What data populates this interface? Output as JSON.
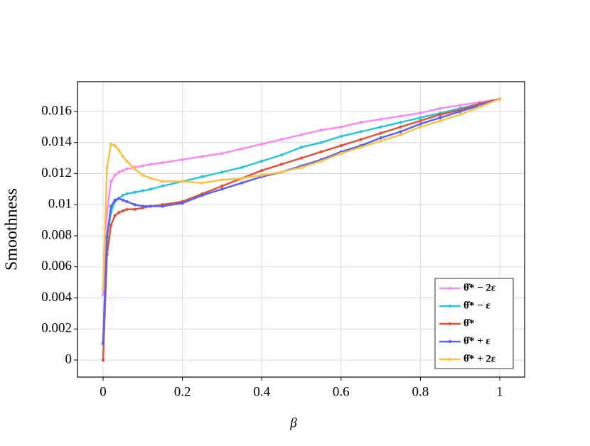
{
  "chart_data": {
    "type": "line",
    "xlabel": "β",
    "ylabel": "Smoothness",
    "x": [
      0,
      0.01,
      0.02,
      0.03,
      0.04,
      0.05,
      0.06,
      0.08,
      0.1,
      0.12,
      0.15,
      0.2,
      0.25,
      0.3,
      0.35,
      0.4,
      0.45,
      0.5,
      0.55,
      0.6,
      0.65,
      0.7,
      0.75,
      0.8,
      0.85,
      0.9,
      0.95,
      1
    ],
    "series": [
      {
        "name": "θ̂* − 2ε",
        "color": "#f78cf0",
        "values": [
          0.0042,
          0.0095,
          0.0115,
          0.0119,
          0.0121,
          0.0122,
          0.0123,
          0.0124,
          0.0125,
          0.0126,
          0.0127,
          0.0129,
          0.0131,
          0.0133,
          0.0136,
          0.0139,
          0.0142,
          0.0145,
          0.0148,
          0.015,
          0.0153,
          0.0155,
          0.0157,
          0.0159,
          0.0162,
          0.0164,
          0.0166,
          0.0168
        ]
      },
      {
        "name": "θ̂* − ε",
        "color": "#2ec4d8",
        "values": [
          0.001,
          0.008,
          0.0095,
          0.0102,
          0.0104,
          0.0106,
          0.0107,
          0.0108,
          0.0109,
          0.011,
          0.0112,
          0.0115,
          0.0118,
          0.0121,
          0.0124,
          0.0128,
          0.0132,
          0.0137,
          0.014,
          0.0144,
          0.0147,
          0.015,
          0.0153,
          0.0156,
          0.0159,
          0.0162,
          0.0165,
          0.0168
        ]
      },
      {
        "name": "θ̂*",
        "color": "#dd5539",
        "values": [
          0,
          0.0068,
          0.0087,
          0.0093,
          0.0095,
          0.0096,
          0.0097,
          0.0097,
          0.0098,
          0.0099,
          0.01,
          0.0102,
          0.0107,
          0.0112,
          0.0117,
          0.0122,
          0.0126,
          0.013,
          0.0134,
          0.0138,
          0.0142,
          0.0146,
          0.015,
          0.0154,
          0.0158,
          0.0161,
          0.0165,
          0.0168
        ]
      },
      {
        "name": "θ̂* + ε",
        "color": "#5b63e8",
        "values": [
          0.0011,
          0.0079,
          0.0099,
          0.0103,
          0.0104,
          0.0103,
          0.0102,
          0.01,
          0.0099,
          0.0099,
          0.0099,
          0.0101,
          0.0106,
          0.011,
          0.0114,
          0.0118,
          0.0121,
          0.0125,
          0.0129,
          0.0134,
          0.0138,
          0.0143,
          0.0147,
          0.0152,
          0.0156,
          0.016,
          0.0164,
          0.0168
        ]
      },
      {
        "name": "θ̂* + 2ε",
        "color": "#f8c24a",
        "values": [
          0.0046,
          0.0124,
          0.0139,
          0.0138,
          0.0135,
          0.0131,
          0.0128,
          0.0123,
          0.0119,
          0.0117,
          0.0115,
          0.0115,
          0.0114,
          0.0116,
          0.0117,
          0.0119,
          0.0121,
          0.0124,
          0.0128,
          0.0133,
          0.0137,
          0.0141,
          0.0145,
          0.015,
          0.0154,
          0.0158,
          0.0163,
          0.0168
        ]
      }
    ],
    "xlim": [
      -0.0645,
      1.0627
    ],
    "xticks": [
      0,
      0.2,
      0.4,
      0.6,
      0.8,
      1
    ],
    "ylim": [
      -0.0011,
      0.01792
    ],
    "yticks": [
      0,
      0.002,
      0.004,
      0.006,
      0.008,
      0.01,
      0.012,
      0.014,
      0.016
    ],
    "grid": true,
    "legend": "lower right"
  }
}
